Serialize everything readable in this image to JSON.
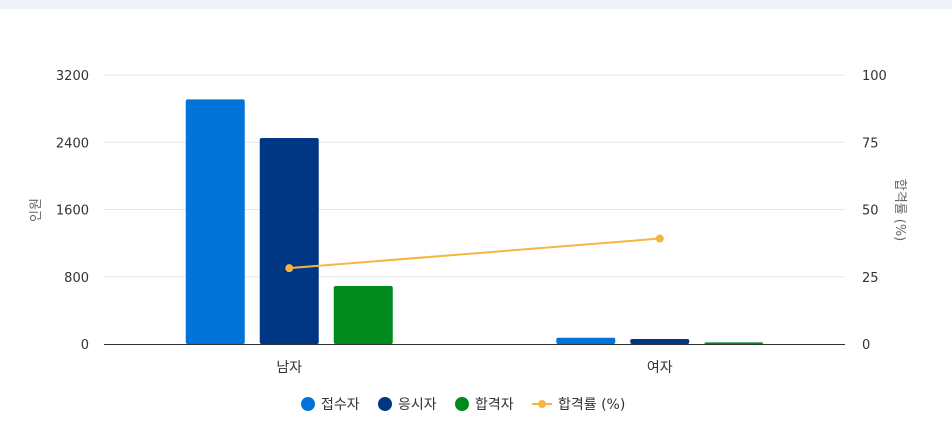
{
  "chart_data": {
    "type": "bar",
    "categories": [
      "남자",
      "여자"
    ],
    "series": [
      {
        "name": "접수자",
        "type": "bar",
        "axis": "left",
        "color": "#0074D9",
        "values": [
          2910,
          75
        ]
      },
      {
        "name": "응시자",
        "type": "bar",
        "axis": "left",
        "color": "#003785",
        "values": [
          2450,
          60
        ]
      },
      {
        "name": "합격자",
        "type": "bar",
        "axis": "left",
        "color": "#008A1E",
        "values": [
          690,
          20
        ]
      },
      {
        "name": "합격률 (%)",
        "type": "line",
        "axis": "right",
        "color": "#F7B540",
        "values": [
          28.2,
          39.2
        ]
      }
    ],
    "y_left": {
      "label": "인원",
      "min": 0,
      "max": 3200,
      "ticks": [
        "0",
        "800",
        "1600",
        "2400",
        "3200"
      ]
    },
    "y_right": {
      "label": "합격률 (%)",
      "min": 0,
      "max": 100,
      "ticks": [
        "0",
        "25",
        "50",
        "75",
        "100"
      ]
    },
    "grid": true,
    "legend_position": "bottom"
  }
}
